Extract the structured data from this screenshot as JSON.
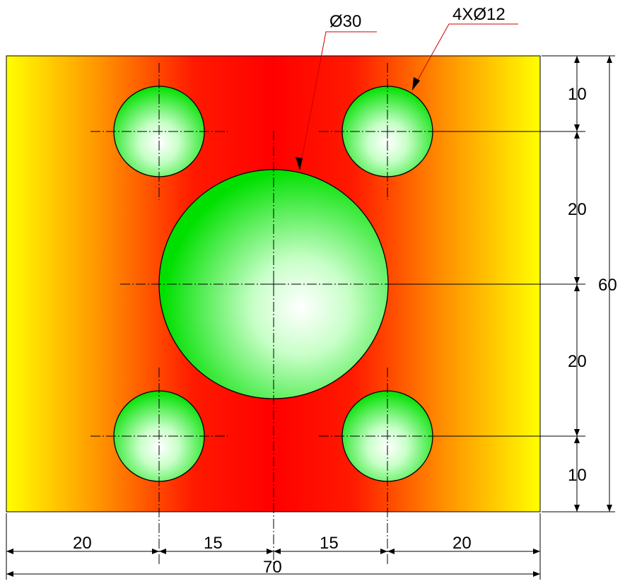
{
  "drawing": {
    "callout_large_hole": "Ø30",
    "callout_small_holes": "4XØ12",
    "dims_horizontal": {
      "left_edge_to_hole": "20",
      "hole_to_center_left": "15",
      "center_to_hole_right": "15",
      "hole_to_right_edge": "20",
      "overall_width": "70"
    },
    "dims_vertical": {
      "top_edge_to_hole": "10",
      "hole_to_center_upper": "20",
      "center_to_hole_lower": "20",
      "hole_to_bottom_edge": "10",
      "overall_height": "60"
    }
  },
  "colors": {
    "plate_edge": "#ffff00",
    "plate_mid": "#ff8a00",
    "plate_center": "#ff0000",
    "hole_fill": "#00e000",
    "hole_highlight": "#ffffff",
    "leader": "#cc0000"
  }
}
